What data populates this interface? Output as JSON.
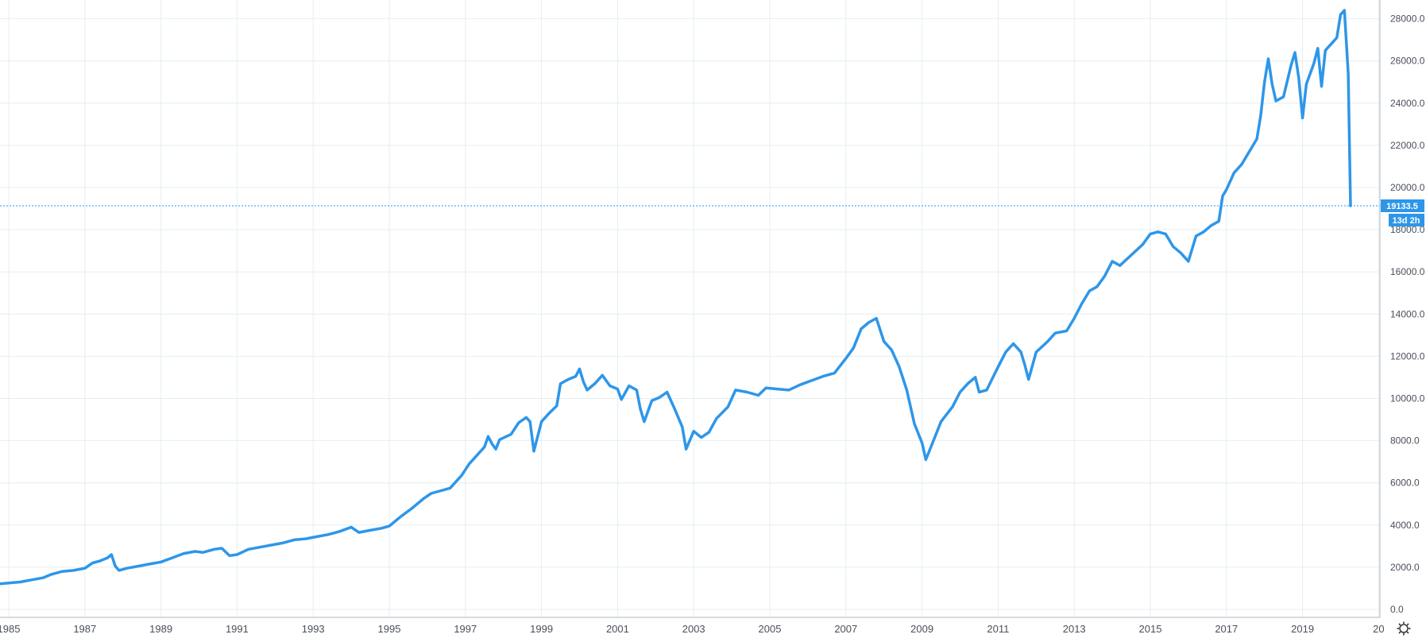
{
  "chart_data": {
    "type": "line",
    "title": "",
    "xlabel": "",
    "ylabel": "",
    "xlim": [
      1984.7,
      2020.65
    ],
    "ylim": [
      0,
      29000
    ],
    "y_ticks": [
      "28000.0",
      "26000.0",
      "24000.0",
      "22000.0",
      "20000.0",
      "18000.0",
      "16000.0",
      "14000.0",
      "12000.0",
      "10000.0",
      "8000.0",
      "6000.0",
      "4000.0",
      "2000.0",
      "0.0"
    ],
    "x_ticks": [
      "1985",
      "1987",
      "1989",
      "1991",
      "1993",
      "1995",
      "1997",
      "1999",
      "2001",
      "2003",
      "2005",
      "2007",
      "2009",
      "2011",
      "2013",
      "2015",
      "2017",
      "2019",
      "20"
    ],
    "grid": true,
    "current_price_label": "19133.5",
    "current_price": 19133.5,
    "countdown_label": "13d 2h",
    "series": [
      {
        "color": "#2e96e8",
        "points": [
          [
            1984.7,
            1200
          ],
          [
            1985.0,
            1250
          ],
          [
            1985.3,
            1300
          ],
          [
            1985.6,
            1400
          ],
          [
            1985.9,
            1500
          ],
          [
            1986.1,
            1650
          ],
          [
            1986.4,
            1800
          ],
          [
            1986.7,
            1850
          ],
          [
            1987.0,
            1950
          ],
          [
            1987.2,
            2200
          ],
          [
            1987.4,
            2300
          ],
          [
            1987.6,
            2450
          ],
          [
            1987.7,
            2600
          ],
          [
            1987.8,
            2050
          ],
          [
            1987.9,
            1850
          ],
          [
            1988.1,
            1950
          ],
          [
            1988.4,
            2050
          ],
          [
            1988.7,
            2150
          ],
          [
            1989.0,
            2250
          ],
          [
            1989.3,
            2450
          ],
          [
            1989.6,
            2650
          ],
          [
            1989.9,
            2750
          ],
          [
            1990.1,
            2700
          ],
          [
            1990.4,
            2850
          ],
          [
            1990.6,
            2900
          ],
          [
            1990.8,
            2550
          ],
          [
            1991.0,
            2600
          ],
          [
            1991.3,
            2850
          ],
          [
            1991.6,
            2950
          ],
          [
            1991.9,
            3050
          ],
          [
            1992.2,
            3150
          ],
          [
            1992.5,
            3300
          ],
          [
            1992.8,
            3350
          ],
          [
            1993.1,
            3450
          ],
          [
            1993.4,
            3550
          ],
          [
            1993.7,
            3700
          ],
          [
            1994.0,
            3900
          ],
          [
            1994.2,
            3650
          ],
          [
            1994.5,
            3750
          ],
          [
            1994.8,
            3850
          ],
          [
            1995.0,
            3950
          ],
          [
            1995.3,
            4400
          ],
          [
            1995.6,
            4800
          ],
          [
            1995.9,
            5250
          ],
          [
            1996.1,
            5500
          ],
          [
            1996.4,
            5650
          ],
          [
            1996.6,
            5750
          ],
          [
            1996.9,
            6350
          ],
          [
            1997.1,
            6900
          ],
          [
            1997.3,
            7300
          ],
          [
            1997.5,
            7700
          ],
          [
            1997.6,
            8200
          ],
          [
            1997.7,
            7850
          ],
          [
            1997.8,
            7600
          ],
          [
            1997.9,
            8050
          ],
          [
            1998.2,
            8300
          ],
          [
            1998.4,
            8850
          ],
          [
            1998.6,
            9100
          ],
          [
            1998.7,
            8900
          ],
          [
            1998.8,
            7500
          ],
          [
            1999.0,
            8900
          ],
          [
            1999.2,
            9300
          ],
          [
            1999.4,
            9650
          ],
          [
            1999.5,
            10700
          ],
          [
            1999.7,
            10900
          ],
          [
            1999.9,
            11050
          ],
          [
            2000.0,
            11400
          ],
          [
            2000.1,
            10800
          ],
          [
            2000.2,
            10400
          ],
          [
            2000.4,
            10700
          ],
          [
            2000.6,
            11100
          ],
          [
            2000.8,
            10600
          ],
          [
            2001.0,
            10450
          ],
          [
            2001.1,
            9950
          ],
          [
            2001.3,
            10600
          ],
          [
            2001.5,
            10400
          ],
          [
            2001.6,
            9500
          ],
          [
            2001.7,
            8900
          ],
          [
            2001.9,
            9900
          ],
          [
            2002.1,
            10050
          ],
          [
            2002.3,
            10300
          ],
          [
            2002.5,
            9500
          ],
          [
            2002.7,
            8650
          ],
          [
            2002.8,
            7600
          ],
          [
            2003.0,
            8450
          ],
          [
            2003.2,
            8150
          ],
          [
            2003.4,
            8400
          ],
          [
            2003.6,
            9050
          ],
          [
            2003.9,
            9600
          ],
          [
            2004.1,
            10400
          ],
          [
            2004.4,
            10300
          ],
          [
            2004.7,
            10150
          ],
          [
            2004.9,
            10500
          ],
          [
            2005.2,
            10450
          ],
          [
            2005.5,
            10400
          ],
          [
            2005.8,
            10650
          ],
          [
            2006.1,
            10850
          ],
          [
            2006.4,
            11050
          ],
          [
            2006.7,
            11200
          ],
          [
            2007.0,
            11900
          ],
          [
            2007.2,
            12400
          ],
          [
            2007.4,
            13300
          ],
          [
            2007.6,
            13600
          ],
          [
            2007.8,
            13800
          ],
          [
            2008.0,
            12700
          ],
          [
            2008.2,
            12300
          ],
          [
            2008.4,
            11500
          ],
          [
            2008.6,
            10400
          ],
          [
            2008.8,
            8800
          ],
          [
            2009.0,
            7900
          ],
          [
            2009.1,
            7100
          ],
          [
            2009.3,
            8000
          ],
          [
            2009.5,
            8900
          ],
          [
            2009.8,
            9600
          ],
          [
            2010.0,
            10300
          ],
          [
            2010.2,
            10700
          ],
          [
            2010.4,
            11000
          ],
          [
            2010.5,
            10300
          ],
          [
            2010.7,
            10400
          ],
          [
            2011.0,
            11500
          ],
          [
            2011.2,
            12200
          ],
          [
            2011.4,
            12600
          ],
          [
            2011.6,
            12200
          ],
          [
            2011.7,
            11600
          ],
          [
            2011.8,
            10900
          ],
          [
            2012.0,
            12200
          ],
          [
            2012.3,
            12700
          ],
          [
            2012.5,
            13100
          ],
          [
            2012.8,
            13200
          ],
          [
            2013.0,
            13800
          ],
          [
            2013.2,
            14500
          ],
          [
            2013.4,
            15100
          ],
          [
            2013.6,
            15300
          ],
          [
            2013.8,
            15800
          ],
          [
            2014.0,
            16500
          ],
          [
            2014.2,
            16300
          ],
          [
            2014.5,
            16800
          ],
          [
            2014.8,
            17300
          ],
          [
            2015.0,
            17800
          ],
          [
            2015.2,
            17900
          ],
          [
            2015.4,
            17800
          ],
          [
            2015.6,
            17200
          ],
          [
            2015.8,
            16900
          ],
          [
            2016.0,
            16500
          ],
          [
            2016.2,
            17700
          ],
          [
            2016.4,
            17900
          ],
          [
            2016.6,
            18200
          ],
          [
            2016.8,
            18400
          ],
          [
            2016.9,
            19600
          ],
          [
            2017.0,
            19900
          ],
          [
            2017.2,
            20700
          ],
          [
            2017.4,
            21100
          ],
          [
            2017.6,
            21700
          ],
          [
            2017.8,
            22300
          ],
          [
            2017.9,
            23400
          ],
          [
            2018.0,
            25000
          ],
          [
            2018.1,
            26100
          ],
          [
            2018.2,
            24900
          ],
          [
            2018.3,
            24100
          ],
          [
            2018.5,
            24300
          ],
          [
            2018.7,
            25800
          ],
          [
            2018.8,
            26400
          ],
          [
            2018.9,
            25200
          ],
          [
            2019.0,
            23300
          ],
          [
            2019.1,
            24900
          ],
          [
            2019.3,
            25900
          ],
          [
            2019.4,
            26600
          ],
          [
            2019.5,
            24800
          ],
          [
            2019.6,
            26500
          ],
          [
            2019.8,
            26900
          ],
          [
            2019.9,
            27100
          ],
          [
            2020.0,
            28200
          ],
          [
            2020.1,
            28400
          ],
          [
            2020.2,
            25400
          ],
          [
            2020.26,
            19133.5
          ]
        ]
      }
    ]
  }
}
